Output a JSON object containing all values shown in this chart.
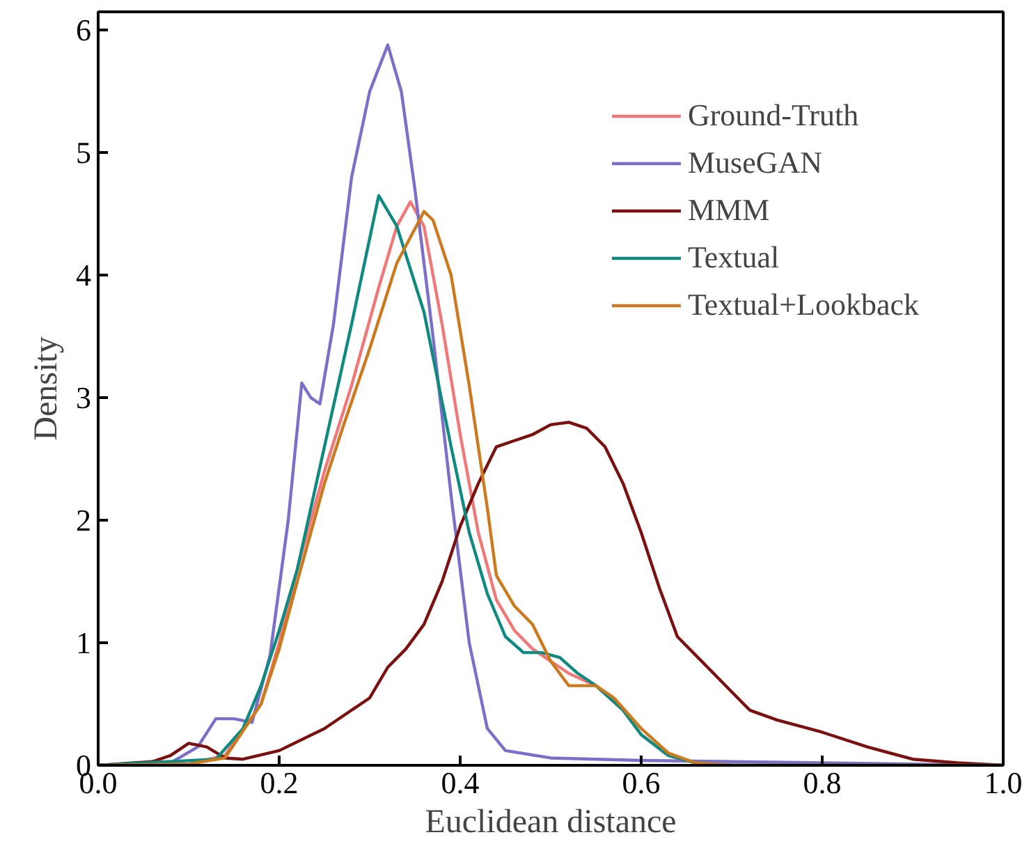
{
  "chart_data": {
    "type": "line",
    "xlabel": "Euclidean distance",
    "ylabel": "Density",
    "xlim": [
      0,
      1
    ],
    "ylim": [
      0,
      6.15
    ],
    "xticks": [
      {
        "value": 0,
        "label": "0.0"
      },
      0.2,
      0.4,
      0.6,
      0.8,
      {
        "value": 1,
        "label": "1.0"
      }
    ],
    "yticks": [
      0,
      1,
      2,
      3,
      4,
      5,
      6
    ],
    "grid": false,
    "legend": "top right",
    "marker": "none",
    "line_style": "solid",
    "series": [
      {
        "name": "Ground-Truth",
        "color": "#f07878",
        "x": [
          0,
          0.1,
          0.14,
          0.18,
          0.2,
          0.22,
          0.25,
          0.28,
          0.31,
          0.33,
          0.345,
          0.36,
          0.38,
          0.4,
          0.42,
          0.44,
          0.46,
          0.48,
          0.5,
          0.52,
          0.55,
          0.58,
          0.6,
          0.63,
          0.66,
          0.7,
          1.0
        ],
        "values": [
          0,
          0.01,
          0.08,
          0.5,
          1.0,
          1.6,
          2.4,
          3.1,
          3.9,
          4.4,
          4.6,
          4.4,
          3.6,
          2.7,
          1.9,
          1.35,
          1.1,
          0.95,
          0.85,
          0.75,
          0.65,
          0.45,
          0.25,
          0.08,
          0.02,
          0,
          0
        ]
      },
      {
        "name": "MuseGAN",
        "color": "#7b6fc8",
        "x": [
          0,
          0.08,
          0.11,
          0.13,
          0.15,
          0.17,
          0.19,
          0.21,
          0.225,
          0.235,
          0.245,
          0.26,
          0.28,
          0.3,
          0.32,
          0.335,
          0.35,
          0.37,
          0.39,
          0.41,
          0.43,
          0.45,
          0.5,
          0.6,
          0.8,
          1.0
        ],
        "values": [
          0,
          0.02,
          0.15,
          0.38,
          0.38,
          0.35,
          0.9,
          2.0,
          3.12,
          3.0,
          2.95,
          3.6,
          4.8,
          5.5,
          5.88,
          5.5,
          4.7,
          3.5,
          2.2,
          1.0,
          0.3,
          0.12,
          0.06,
          0.04,
          0.02,
          0
        ]
      },
      {
        "name": "MMM",
        "color": "#7a1010",
        "x": [
          0,
          0.06,
          0.08,
          0.1,
          0.12,
          0.14,
          0.16,
          0.2,
          0.25,
          0.3,
          0.32,
          0.34,
          0.36,
          0.38,
          0.4,
          0.42,
          0.44,
          0.46,
          0.48,
          0.5,
          0.52,
          0.54,
          0.56,
          0.58,
          0.6,
          0.62,
          0.64,
          0.66,
          0.68,
          0.7,
          0.72,
          0.75,
          0.8,
          0.85,
          0.9,
          0.95,
          1.0
        ],
        "values": [
          0,
          0.03,
          0.08,
          0.18,
          0.15,
          0.06,
          0.05,
          0.12,
          0.3,
          0.55,
          0.8,
          0.95,
          1.15,
          1.5,
          1.95,
          2.3,
          2.6,
          2.65,
          2.7,
          2.78,
          2.8,
          2.75,
          2.6,
          2.3,
          1.9,
          1.45,
          1.05,
          0.9,
          0.75,
          0.6,
          0.45,
          0.37,
          0.27,
          0.15,
          0.05,
          0.02,
          0
        ]
      },
      {
        "name": "Textual",
        "color": "#108a80",
        "x": [
          0,
          0.13,
          0.16,
          0.18,
          0.2,
          0.22,
          0.25,
          0.28,
          0.3,
          0.31,
          0.33,
          0.36,
          0.39,
          0.41,
          0.43,
          0.45,
          0.47,
          0.49,
          0.51,
          0.53,
          0.55,
          0.58,
          0.6,
          0.63,
          0.66,
          0.7,
          1.0
        ],
        "values": [
          0,
          0.05,
          0.3,
          0.65,
          1.1,
          1.6,
          2.6,
          3.6,
          4.3,
          4.65,
          4.4,
          3.7,
          2.6,
          1.9,
          1.4,
          1.05,
          0.92,
          0.92,
          0.88,
          0.75,
          0.65,
          0.45,
          0.25,
          0.08,
          0.02,
          0,
          0
        ]
      },
      {
        "name": "Textual+Lookback",
        "color": "#cc7a20",
        "x": [
          0,
          0.1,
          0.14,
          0.18,
          0.2,
          0.22,
          0.25,
          0.27,
          0.3,
          0.33,
          0.36,
          0.37,
          0.39,
          0.41,
          0.43,
          0.44,
          0.46,
          0.48,
          0.5,
          0.52,
          0.55,
          0.57,
          0.6,
          0.63,
          0.66,
          0.7,
          1.0
        ],
        "values": [
          0,
          0.01,
          0.06,
          0.5,
          0.95,
          1.5,
          2.3,
          2.75,
          3.4,
          4.1,
          4.52,
          4.45,
          4.0,
          3.1,
          2.1,
          1.55,
          1.3,
          1.15,
          0.85,
          0.65,
          0.65,
          0.55,
          0.3,
          0.1,
          0.02,
          0,
          0
        ]
      }
    ]
  }
}
